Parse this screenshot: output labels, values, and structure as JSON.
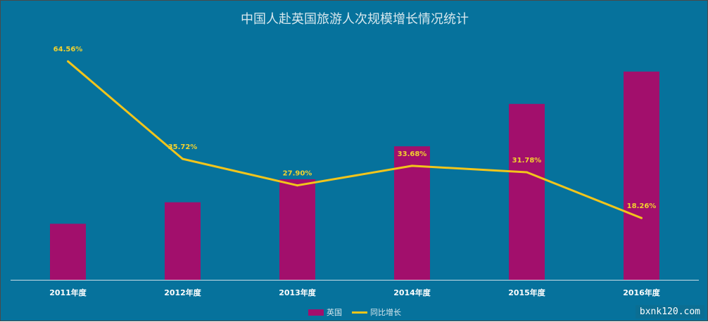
{
  "chart_data": {
    "type": "bar",
    "title": "中国人赴英国旅游人次规模增长情况统计",
    "categories": [
      "2011年度",
      "2012年度",
      "2013年度",
      "2014年度",
      "2015年度",
      "2016年度"
    ],
    "series": [
      {
        "name": "英国",
        "type": "bar",
        "color": "#a20f6c",
        "values": [
          78,
          108,
          140,
          186,
          245,
          290
        ]
      },
      {
        "name": "同比增长",
        "type": "line",
        "color": "#f2c51b",
        "values": [
          64.56,
          35.72,
          27.9,
          33.68,
          31.78,
          18.26
        ],
        "labels": [
          "64.56%",
          "35.72%",
          "27.90%",
          "33.68%",
          "31.78%",
          "18.26%"
        ]
      }
    ],
    "bar_axis_max": 330,
    "line_axis_range": [
      0,
      70
    ],
    "grid": false,
    "legend_position": "bottom-center",
    "background_color": "#06729c",
    "axis_color": "#c8dde6"
  },
  "watermark": "bxnk120.com"
}
